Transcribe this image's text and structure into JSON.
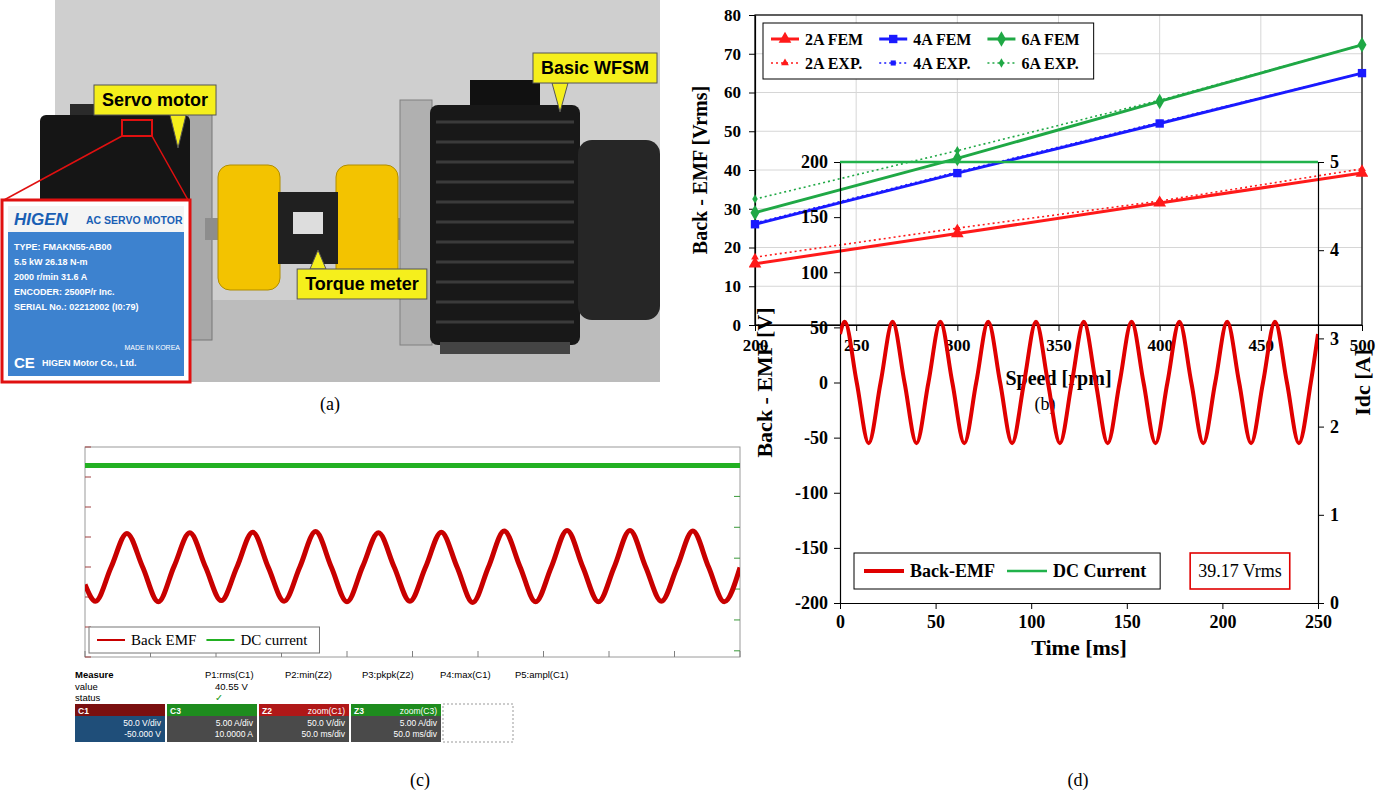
{
  "panel_labels": [
    "(a)",
    "(b)",
    "(c)",
    "(d)"
  ],
  "photo": {
    "callouts": [
      "Servo motor",
      "Torque meter",
      "Basic WFSM"
    ],
    "nameplate": {
      "brand": "HIGEN",
      "title": "AC SERVO MOTOR",
      "lines": [
        "TYPE: FMAKN55-AB00",
        "5.5 kW  26.18 N-m",
        "2000 r/min  31.6 A",
        "ENCODER: 2500P/r Inc.",
        "SERIAL No.: 02212002 (I0:79)"
      ],
      "footer": [
        "CE",
        "HIGEN Motor Co., Ltd.",
        "MADE IN KOREA"
      ]
    }
  },
  "chart_data": [
    {
      "type": "line",
      "x_label": "Speed [rpm]",
      "y_label": "Back - EMF [Vrms]",
      "x": [
        200,
        300,
        400,
        500
      ],
      "xlim": [
        200,
        500
      ],
      "xticks": [
        200,
        250,
        300,
        350,
        400,
        450,
        500
      ],
      "ylim": [
        0,
        80
      ],
      "yticks": [
        0,
        10,
        20,
        30,
        40,
        50,
        60,
        70,
        80
      ],
      "grid": true,
      "legend": "top-left",
      "series": [
        {
          "name": "2A FEM",
          "color": "#ff1a1a",
          "marker": "triangle",
          "line_style": "solid",
          "values": [
            15.8,
            23.6,
            31.5,
            39.2
          ]
        },
        {
          "name": "4A FEM",
          "color": "#1a1aff",
          "marker": "square",
          "line_style": "solid",
          "values": [
            26,
            39.2,
            52,
            65
          ]
        },
        {
          "name": "6A FEM",
          "color": "#1fa845",
          "marker": "diamond",
          "line_style": "solid",
          "values": [
            29,
            43,
            57.7,
            72.3
          ]
        },
        {
          "name": "2A EXP.",
          "color": "#ff1a1a",
          "marker": "triangle",
          "line_style": "dotted",
          "values": [
            17.5,
            25,
            32,
            40.3
          ]
        },
        {
          "name": "4A EXP.",
          "color": "#1a1aff",
          "marker": "square",
          "line_style": "dotted",
          "values": [
            26.3,
            39.5,
            52.3,
            65
          ]
        },
        {
          "name": "6A EXP.",
          "color": "#1fa845",
          "marker": "diamond",
          "line_style": "dotted",
          "values": [
            32.5,
            45,
            58,
            72.3
          ]
        }
      ]
    },
    {
      "type": "line",
      "x": [
        0,
        8,
        20,
        32,
        44,
        56,
        68,
        80,
        92,
        104,
        116,
        128,
        140,
        152,
        164,
        176,
        188,
        200,
        212,
        224,
        236,
        248,
        260,
        272,
        284,
        296,
        308,
        320,
        332,
        344,
        356,
        368,
        380,
        392,
        404,
        416,
        428,
        440,
        452,
        464,
        476,
        488,
        500
      ],
      "xlim": [
        0,
        500
      ],
      "xticks": [
        0,
        50,
        100,
        150,
        200,
        250,
        300,
        350,
        400,
        450,
        500
      ],
      "ylim": [
        -150,
        200
      ],
      "yticks": [
        -150,
        -100,
        -50,
        0,
        50,
        100,
        150,
        200
      ],
      "y2lim": [
        -26,
        8
      ],
      "y2ticks": [
        -25,
        -20,
        -15,
        -10,
        -5,
        0,
        5
      ],
      "tick_labels": false,
      "grid": false,
      "legend": "bottom-left",
      "series": [
        {
          "name": "Back EMF",
          "color": "#c80000",
          "values": [
            -29,
            -57,
            0,
            56,
            0,
            -58,
            1,
            57,
            0,
            -56,
            0,
            58,
            -1,
            -57,
            0,
            59,
            0,
            -58,
            1,
            57,
            0,
            -57,
            0,
            58,
            0,
            -59,
            0,
            60,
            1,
            -58,
            0,
            61,
            0,
            -58,
            0,
            61,
            0,
            -57,
            0,
            60,
            0,
            -58,
            -1
          ]
        },
        {
          "name": "DC current",
          "color": "#22b022",
          "axis": "y2",
          "values": [
            5,
            5,
            5,
            5,
            5,
            5,
            5,
            5,
            5,
            5,
            5,
            5,
            5,
            5,
            5,
            5,
            5,
            5,
            5,
            5,
            5,
            5,
            5,
            5,
            5,
            5,
            5,
            5,
            5,
            5,
            5,
            5,
            5,
            5,
            5,
            5,
            5,
            5,
            5,
            5,
            5,
            5,
            5
          ]
        }
      ]
    },
    {
      "type": "line",
      "x_label": "Time [ms]",
      "y_label": "Back - EMF [V]",
      "y2_label": "Idc [A]",
      "x": [
        0,
        2.5,
        8.75,
        15,
        21.25,
        27.5,
        33.75,
        40,
        46.25,
        52.5,
        58.75,
        65,
        71.25,
        77.5,
        83.75,
        90,
        96.25,
        102.5,
        108.75,
        115,
        121.25,
        127.5,
        133.75,
        140,
        146.25,
        152.5,
        158.75,
        165,
        171.25,
        177.5,
        183.75,
        190,
        196.25,
        202.5,
        208.75,
        215,
        221.25,
        227.5,
        233.75,
        240,
        246.25,
        250
      ],
      "xlim": [
        0,
        250
      ],
      "xticks": [
        0,
        50,
        100,
        150,
        200,
        250
      ],
      "ylim": [
        -200,
        200
      ],
      "yticks": [
        -200,
        -150,
        -100,
        -50,
        0,
        50,
        100,
        150,
        200
      ],
      "y2lim": [
        0,
        5
      ],
      "y2ticks": [
        0,
        1,
        2,
        3,
        4,
        5
      ],
      "grid": false,
      "legend": "bottom-left",
      "annotations": [
        "39.17 Vrms"
      ],
      "series": [
        {
          "name": "Back-EMF",
          "color": "#e00000",
          "values": [
            44,
            55,
            0,
            -55,
            0,
            55,
            0,
            -55,
            0,
            55,
            0,
            -55,
            0,
            55,
            0,
            -55,
            0,
            55,
            0,
            -55,
            0,
            55,
            0,
            -55,
            0,
            55,
            0,
            -55,
            0,
            55,
            0,
            -55,
            0,
            55,
            0,
            -55,
            0,
            55,
            0,
            -55,
            0,
            44
          ]
        },
        {
          "name": "DC Current",
          "color": "#21b24b",
          "axis": "y2",
          "values": [
            5,
            5,
            5,
            5,
            5,
            5,
            5,
            5,
            5,
            5,
            5,
            5,
            5,
            5,
            5,
            5,
            5,
            5,
            5,
            5,
            5,
            5,
            5,
            5,
            5,
            5,
            5,
            5,
            5,
            5,
            5,
            5,
            5,
            5,
            5,
            5,
            5,
            5,
            5,
            5,
            5,
            5
          ]
        }
      ]
    }
  ],
  "scope_readout": {
    "headers": [
      "Measure",
      "P1:rms(C1)",
      "P2:min(Z2)",
      "P3:pkpk(Z2)",
      "P4:max(C1)",
      "P5:ampl(C1)"
    ],
    "rows": [
      {
        "label": "value",
        "entries": [
          "40.55 V"
        ]
      },
      {
        "label": "status",
        "entries": [
          "✓"
        ]
      }
    ],
    "channels": [
      {
        "header": "C1",
        "lines": [
          "50.0 V/div",
          "-50.000 V"
        ]
      },
      {
        "header": "C3",
        "lines": [
          "5.00 A/div",
          "10.0000 A"
        ]
      },
      {
        "header": "Z2",
        "source": "zoom(C1)",
        "lines": [
          "50.0 V/div",
          "50.0 ms/div"
        ]
      },
      {
        "header": "Z3",
        "source": "zoom(C3)",
        "lines": [
          "5.00 A/div",
          "50.0 ms/div"
        ]
      }
    ]
  }
}
